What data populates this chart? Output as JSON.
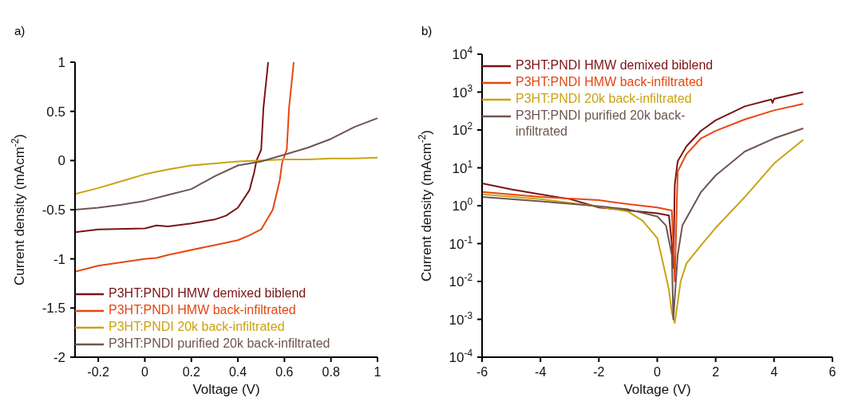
{
  "chart_data": [
    {
      "type": "line",
      "annotations": [
        "a)"
      ],
      "xlabel": "Voltage (V)",
      "ylabel": "Current density (mAcm$^{-2}$)",
      "xlim": [
        -0.3,
        1
      ],
      "xticks": [
        -0.2,
        0,
        0.2,
        0.4,
        0.6,
        0.8,
        1
      ],
      "ylim": [
        -2,
        1
      ],
      "yticks": [
        -2,
        -1.5,
        -1,
        -0.5,
        0,
        0.5,
        1
      ],
      "legend": "bottom left",
      "marker": "none",
      "line_style": "solid",
      "grid": false,
      "series": [
        {
          "name": "P3HT:PNDI HMW demixed biblend",
          "color": "#7a1414",
          "x": [
            -0.3,
            -0.2,
            0,
            0.05,
            0.1,
            0.2,
            0.3,
            0.35,
            0.4,
            0.45,
            0.47,
            0.48,
            0.5,
            0.51,
            0.53
          ],
          "values": [
            -0.73,
            -0.7,
            -0.69,
            -0.66,
            -0.67,
            -0.64,
            -0.6,
            -0.56,
            -0.48,
            -0.3,
            -0.12,
            0,
            0.11,
            0.54,
            1
          ]
        },
        {
          "name": "P3HT:PNDI HMW back-infiltrated",
          "color": "#e8460f",
          "x": [
            -0.3,
            -0.2,
            0,
            0.05,
            0.1,
            0.2,
            0.3,
            0.4,
            0.45,
            0.5,
            0.55,
            0.58,
            0.59,
            0.61,
            0.62,
            0.64
          ],
          "values": [
            -1.13,
            -1.07,
            -1,
            -0.99,
            -0.96,
            -0.91,
            -0.86,
            -0.81,
            -0.76,
            -0.7,
            -0.5,
            -0.2,
            -0.02,
            0.11,
            0.54,
            1
          ]
        },
        {
          "name": "P3HT:PNDI 20k back-infiltrated",
          "color": "#c9a312",
          "x": [
            -0.3,
            -0.2,
            -0.1,
            0,
            0.1,
            0.2,
            0.3,
            0.4,
            0.5,
            0.6,
            0.7,
            0.8,
            0.9,
            1
          ],
          "values": [
            -0.34,
            -0.28,
            -0.21,
            -0.14,
            -0.09,
            -0.05,
            -0.03,
            -0.01,
            0,
            0.01,
            0.01,
            0.02,
            0.02,
            0.03
          ]
        },
        {
          "name": "P3HT:PNDI purified 20k back-infiltrated",
          "color": "#6e5550",
          "x": [
            -0.3,
            -0.2,
            -0.1,
            0,
            0.1,
            0.2,
            0.3,
            0.4,
            0.5,
            0.6,
            0.7,
            0.8,
            0.9,
            1
          ],
          "values": [
            -0.5,
            -0.48,
            -0.45,
            -0.41,
            -0.35,
            -0.29,
            -0.16,
            -0.05,
            -0.01,
            0.06,
            0.13,
            0.22,
            0.34,
            0.43
          ]
        }
      ]
    },
    {
      "type": "line",
      "annotations": [
        "b)"
      ],
      "xlabel": "Voltage (V)",
      "ylabel": "Current density (mAcm$^{-2}$)",
      "xlim": [
        -6,
        6
      ],
      "xticks": [
        -6,
        -4,
        -2,
        0,
        2,
        4,
        6
      ],
      "ylim": [
        0.0001,
        10000
      ],
      "log": "y",
      "yticks": [
        {
          "value": 0.0001,
          "label": "10$^{-4}$"
        },
        {
          "value": 0.001,
          "label": "10$^{-3}$"
        },
        {
          "value": 0.01,
          "label": "10$^{-2}$"
        },
        {
          "value": 0.1,
          "label": "10$^{-1}$"
        },
        {
          "value": 1,
          "label": "10$^{0}$"
        },
        {
          "value": 10,
          "label": "10$^{1}$"
        },
        {
          "value": 100,
          "label": "10$^{2}$"
        },
        {
          "value": 1000,
          "label": "10$^{3}$"
        },
        {
          "value": 10000,
          "label": "10$^{4}$"
        }
      ],
      "legend": "top left",
      "marker": "none",
      "line_style": "solid",
      "grid": false,
      "series": [
        {
          "name": "P3HT:PNDI HMW demixed biblend",
          "color": "#7a1414",
          "x": [
            -6,
            -5,
            -4,
            -3,
            -2,
            -1,
            0,
            0.4,
            0.5,
            0.55,
            0.6,
            0.7,
            1,
            1.5,
            2,
            3,
            3.9,
            3.95,
            4,
            5
          ],
          "values": [
            3.9,
            2.7,
            2,
            1.5,
            0.9,
            0.75,
            0.63,
            0.55,
            0.1,
            0.023,
            3.6,
            15,
            37,
            95,
            180,
            420,
            640,
            520,
            660,
            1000
          ]
        },
        {
          "name": "P3HT:PNDI HMW back-infiltrated",
          "color": "#e8460f",
          "x": [
            -6,
            -4,
            -2,
            -1,
            0,
            0.5,
            0.6,
            0.7,
            1,
            1.5,
            2,
            3,
            4,
            5
          ],
          "values": [
            2.3,
            1.7,
            1.4,
            1.1,
            0.9,
            0.75,
            0.01,
            8,
            23,
            60,
            95,
            190,
            330,
            490
          ]
        },
        {
          "name": "P3HT:PNDI 20k back-infiltrated",
          "color": "#c9a312",
          "x": [
            -6,
            -4,
            -2,
            -1,
            -0.5,
            0,
            0.2,
            0.4,
            0.5,
            0.6,
            0.8,
            1,
            1.5,
            2,
            3,
            4,
            5
          ],
          "values": [
            2,
            1.5,
            0.95,
            0.7,
            0.4,
            0.14,
            0.03,
            0.006,
            0.0015,
            0.0008,
            0.01,
            0.03,
            0.09,
            0.26,
            1.7,
            13,
            55
          ]
        },
        {
          "name": "P3HT:PNDI purified 20k back-infiltrated",
          "color": "#6e5550",
          "x": [
            -6,
            -4,
            -2,
            -1,
            0,
            0.3,
            0.5,
            0.55,
            0.7,
            0.86,
            1.5,
            2,
            3,
            4,
            5
          ],
          "values": [
            1.7,
            1.3,
            0.97,
            0.8,
            0.52,
            0.3,
            0.05,
            0.001,
            0.05,
            0.3,
            2.3,
            6.3,
            27,
            60,
            110
          ]
        }
      ]
    }
  ]
}
